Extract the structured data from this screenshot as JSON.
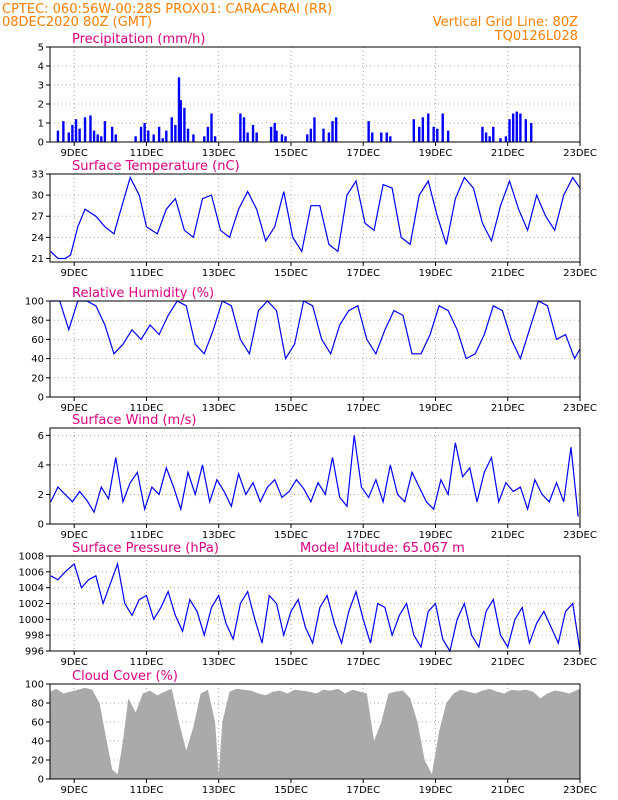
{
  "header": {
    "line1": "CPTEC:   060:56W-00:28S   PROX01: CARACARAI (RR)",
    "line2_left": "08DEC2020 80Z (GMT)",
    "line2_right": "Vertical Grid Line: 80Z",
    "line3_right": "TQ0126L028"
  },
  "x_ticks": [
    "9DEC",
    "11DEC",
    "13DEC",
    "15DEC",
    "17DEC",
    "19DEC",
    "21DEC",
    "23DEC"
  ],
  "colors": {
    "header": "#ff7f00",
    "title": "#e0007f",
    "series": "#0000ff",
    "cloud": "#aaaaaa"
  },
  "chart_data": [
    {
      "type": "bar",
      "title": "Precipitation (mm/h)",
      "ylim": [
        0,
        5
      ],
      "yticks": [
        0,
        1,
        2,
        3,
        4,
        5
      ],
      "x_range_days": [
        8.33,
        23.0
      ],
      "x": [
        8.55,
        8.7,
        8.85,
        8.95,
        9.05,
        9.15,
        9.3,
        9.45,
        9.55,
        9.65,
        9.75,
        9.85,
        10.05,
        10.15,
        10.7,
        10.85,
        10.95,
        11.05,
        11.2,
        11.35,
        11.45,
        11.55,
        11.7,
        11.8,
        11.9,
        11.95,
        12.05,
        12.15,
        12.3,
        12.6,
        12.7,
        12.8,
        12.9,
        13.6,
        13.7,
        13.8,
        13.95,
        14.05,
        14.45,
        14.55,
        14.6,
        14.75,
        14.85,
        15.45,
        15.55,
        15.65,
        15.9,
        16.05,
        16.15,
        16.25,
        17.15,
        17.25,
        17.5,
        17.65,
        17.75,
        18.4,
        18.55,
        18.65,
        18.8,
        18.95,
        19.05,
        19.2,
        19.35,
        20.3,
        20.4,
        20.5,
        20.6,
        20.8,
        20.95,
        21.05,
        21.15,
        21.25,
        21.35,
        21.5,
        21.65
      ],
      "values": [
        0.6,
        1.1,
        0.5,
        0.9,
        1.2,
        0.7,
        1.3,
        1.4,
        0.6,
        0.4,
        0.3,
        1.1,
        0.8,
        0.4,
        0.3,
        0.8,
        1.0,
        0.6,
        0.4,
        0.8,
        0.2,
        0.6,
        1.3,
        0.9,
        3.4,
        2.2,
        1.8,
        0.7,
        0.4,
        0.3,
        0.8,
        1.5,
        0.3,
        1.5,
        1.3,
        0.5,
        0.9,
        0.5,
        0.8,
        1.0,
        0.6,
        0.4,
        0.3,
        0.4,
        0.7,
        1.3,
        0.7,
        0.5,
        1.1,
        1.3,
        1.1,
        0.5,
        0.5,
        0.5,
        0.3,
        1.2,
        0.8,
        1.3,
        1.5,
        0.8,
        0.7,
        1.5,
        0.6,
        0.8,
        0.5,
        0.3,
        0.8,
        0.2,
        0.3,
        1.2,
        1.5,
        1.6,
        1.5,
        1.2,
        1.0
      ]
    },
    {
      "type": "line",
      "title": "Surface Temperature (nC)",
      "ylim": [
        20.5,
        33
      ],
      "yticks": [
        21,
        24,
        27,
        30,
        33
      ],
      "x_range_days": [
        8.33,
        23.0
      ],
      "x": [
        8.35,
        8.55,
        8.75,
        8.9,
        9.1,
        9.3,
        9.6,
        9.85,
        10.1,
        10.35,
        10.55,
        10.8,
        11.0,
        11.3,
        11.55,
        11.8,
        12.05,
        12.3,
        12.55,
        12.8,
        13.05,
        13.3,
        13.55,
        13.8,
        14.05,
        14.3,
        14.55,
        14.8,
        15.05,
        15.3,
        15.55,
        15.8,
        16.05,
        16.3,
        16.55,
        16.8,
        17.05,
        17.3,
        17.55,
        17.8,
        18.05,
        18.3,
        18.55,
        18.8,
        19.05,
        19.3,
        19.55,
        19.8,
        20.05,
        20.3,
        20.55,
        20.8,
        21.05,
        21.3,
        21.55,
        21.8,
        22.05,
        22.3,
        22.55,
        22.8,
        23.0
      ],
      "values": [
        22,
        21,
        21,
        21.5,
        25.5,
        28,
        27,
        25.5,
        24.5,
        29,
        32.5,
        30,
        25.5,
        24.5,
        28,
        29.5,
        25,
        24,
        29.5,
        30,
        25,
        24,
        28,
        30.5,
        28,
        23.5,
        25.5,
        30.5,
        24,
        22,
        28.5,
        28.5,
        23,
        22,
        30,
        32,
        26,
        25,
        31.5,
        31,
        24,
        23,
        30,
        32,
        27,
        23,
        29.5,
        32.5,
        31,
        26,
        23.5,
        28.5,
        32,
        28,
        25,
        30,
        27,
        25,
        30,
        32.5,
        31
      ]
    },
    {
      "type": "line",
      "title": "Relative Humidity (%)",
      "ylim": [
        0,
        100
      ],
      "yticks": [
        0,
        20,
        40,
        60,
        80,
        100
      ],
      "x_range_days": [
        8.33,
        23.0
      ],
      "x": [
        8.35,
        8.6,
        8.85,
        9.1,
        9.35,
        9.6,
        9.85,
        10.1,
        10.35,
        10.6,
        10.85,
        11.1,
        11.35,
        11.6,
        11.85,
        12.1,
        12.35,
        12.6,
        12.85,
        13.1,
        13.35,
        13.6,
        13.85,
        14.1,
        14.35,
        14.6,
        14.85,
        15.1,
        15.35,
        15.6,
        15.85,
        16.1,
        16.35,
        16.6,
        16.85,
        17.1,
        17.35,
        17.6,
        17.85,
        18.1,
        18.35,
        18.6,
        18.85,
        19.1,
        19.35,
        19.6,
        19.85,
        20.1,
        20.35,
        20.6,
        20.85,
        21.1,
        21.35,
        21.6,
        21.85,
        22.1,
        22.35,
        22.6,
        22.85,
        23.0
      ],
      "values": [
        100,
        100,
        70,
        100,
        100,
        95,
        75,
        45,
        55,
        70,
        60,
        75,
        65,
        85,
        100,
        95,
        55,
        45,
        70,
        100,
        95,
        60,
        45,
        90,
        100,
        90,
        40,
        55,
        100,
        95,
        60,
        45,
        75,
        90,
        95,
        60,
        45,
        70,
        90,
        85,
        45,
        45,
        65,
        95,
        90,
        70,
        40,
        45,
        65,
        95,
        90,
        60,
        40,
        70,
        100,
        95,
        60,
        65,
        40,
        50
      ]
    },
    {
      "type": "line",
      "title": "Surface Wind (m/s)",
      "ylim": [
        0,
        6.5
      ],
      "yticks": [
        0,
        2,
        4,
        6
      ],
      "x_range_days": [
        8.33,
        23.0
      ],
      "x": [
        8.35,
        8.55,
        8.75,
        8.95,
        9.15,
        9.35,
        9.55,
        9.75,
        9.95,
        10.15,
        10.35,
        10.55,
        10.75,
        10.95,
        11.15,
        11.35,
        11.55,
        11.75,
        11.95,
        12.15,
        12.35,
        12.55,
        12.75,
        12.95,
        13.15,
        13.35,
        13.55,
        13.75,
        13.95,
        14.15,
        14.35,
        14.55,
        14.75,
        14.95,
        15.15,
        15.35,
        15.55,
        15.75,
        15.95,
        16.15,
        16.35,
        16.55,
        16.75,
        16.95,
        17.15,
        17.35,
        17.55,
        17.75,
        17.95,
        18.15,
        18.35,
        18.55,
        18.75,
        18.95,
        19.15,
        19.35,
        19.55,
        19.75,
        19.95,
        20.15,
        20.35,
        20.55,
        20.75,
        20.95,
        21.15,
        21.35,
        21.55,
        21.75,
        21.95,
        22.15,
        22.35,
        22.55,
        22.75,
        22.95
      ],
      "values": [
        1.5,
        2.5,
        2.0,
        1.5,
        2.2,
        1.6,
        0.8,
        2.5,
        1.7,
        4.5,
        1.5,
        2.8,
        3.5,
        1.0,
        2.5,
        2.0,
        3.8,
        2.5,
        1.0,
        3.5,
        2.0,
        4.0,
        1.5,
        3.0,
        2.2,
        1.2,
        3.4,
        2.0,
        2.8,
        1.5,
        2.5,
        3.0,
        1.8,
        2.2,
        3.0,
        2.4,
        1.5,
        2.8,
        2.0,
        4.5,
        1.8,
        1.2,
        6.0,
        2.5,
        1.8,
        3.0,
        1.5,
        4.0,
        2.0,
        1.5,
        3.5,
        2.5,
        1.5,
        1.0,
        3.0,
        2.0,
        5.5,
        3.2,
        3.8,
        1.5,
        3.5,
        4.5,
        1.5,
        2.8,
        2.2,
        2.5,
        1.0,
        3.0,
        2.0,
        1.5,
        2.8,
        1.5,
        5.2,
        0.5
      ]
    },
    {
      "type": "line",
      "title": "Surface Pressure (hPa)",
      "annotation": "Model Altitude: 65.067 m",
      "ylim": [
        996,
        1008
      ],
      "yticks": [
        996,
        998,
        1000,
        1002,
        1004,
        1006,
        1008
      ],
      "x_range_days": [
        8.33,
        23.0
      ],
      "x": [
        8.35,
        8.55,
        8.75,
        9.0,
        9.2,
        9.4,
        9.6,
        9.8,
        10.0,
        10.2,
        10.4,
        10.6,
        10.8,
        11.0,
        11.2,
        11.4,
        11.6,
        11.8,
        12.0,
        12.2,
        12.4,
        12.6,
        12.8,
        13.0,
        13.2,
        13.4,
        13.6,
        13.8,
        14.0,
        14.2,
        14.4,
        14.6,
        14.8,
        15.0,
        15.2,
        15.4,
        15.6,
        15.8,
        16.0,
        16.2,
        16.4,
        16.6,
        16.8,
        17.0,
        17.2,
        17.4,
        17.6,
        17.8,
        18.0,
        18.2,
        18.4,
        18.6,
        18.8,
        19.0,
        19.2,
        19.4,
        19.6,
        19.8,
        20.0,
        20.2,
        20.4,
        20.6,
        20.8,
        21.0,
        21.2,
        21.4,
        21.6,
        21.8,
        22.0,
        22.2,
        22.4,
        22.6,
        22.8,
        23.0
      ],
      "values": [
        1005.5,
        1005,
        1006,
        1007,
        1004,
        1005,
        1005.5,
        1002,
        1004.5,
        1007,
        1002,
        1000.5,
        1002.5,
        1003,
        1000,
        1001.5,
        1003.5,
        1000.5,
        998.5,
        1002.5,
        1001,
        998,
        1001.5,
        1003,
        999.5,
        997.5,
        1002,
        1003.5,
        1000,
        997,
        1003,
        1002,
        998,
        1001,
        1002.5,
        999,
        997,
        1001.5,
        1003,
        999.5,
        997,
        1001,
        1003.5,
        1000,
        997,
        1002,
        1001.5,
        998,
        1000.5,
        1002,
        998,
        996.5,
        1001,
        1002,
        997.5,
        996,
        1000,
        1002,
        998,
        996.5,
        1001,
        1002.5,
        998,
        996.5,
        1000,
        1001.5,
        997,
        999.5,
        1001,
        999,
        997,
        1001,
        1002,
        996
      ]
    },
    {
      "type": "area",
      "title": "Cloud Cover (%)",
      "ylim": [
        0,
        100
      ],
      "yticks": [
        0,
        20,
        40,
        60,
        80,
        100
      ],
      "x_range_days": [
        8.33,
        23.0
      ],
      "x": [
        8.35,
        8.5,
        8.7,
        8.9,
        9.1,
        9.3,
        9.5,
        9.7,
        9.9,
        10.05,
        10.2,
        10.35,
        10.5,
        10.7,
        10.9,
        11.1,
        11.3,
        11.5,
        11.7,
        11.9,
        12.1,
        12.3,
        12.5,
        12.7,
        12.9,
        13.0,
        13.1,
        13.3,
        13.5,
        13.7,
        13.9,
        14.1,
        14.3,
        14.5,
        14.7,
        14.9,
        15.1,
        15.3,
        15.5,
        15.7,
        15.9,
        16.1,
        16.3,
        16.5,
        16.7,
        16.9,
        17.1,
        17.3,
        17.5,
        17.7,
        17.9,
        18.1,
        18.3,
        18.5,
        18.7,
        18.9,
        19.1,
        19.3,
        19.5,
        19.7,
        19.9,
        20.1,
        20.3,
        20.5,
        20.7,
        20.9,
        21.1,
        21.3,
        21.5,
        21.7,
        21.9,
        22.1,
        22.3,
        22.5,
        22.7,
        23.0
      ],
      "values": [
        92,
        95,
        90,
        92,
        94,
        96,
        94,
        80,
        40,
        10,
        5,
        40,
        85,
        70,
        90,
        93,
        88,
        92,
        95,
        60,
        30,
        55,
        90,
        94,
        60,
        5,
        60,
        92,
        95,
        94,
        93,
        90,
        88,
        92,
        93,
        90,
        94,
        93,
        92,
        90,
        94,
        93,
        95,
        90,
        94,
        92,
        90,
        40,
        60,
        90,
        92,
        93,
        85,
        60,
        20,
        5,
        50,
        80,
        90,
        94,
        92,
        90,
        93,
        95,
        92,
        90,
        94,
        93,
        94,
        92,
        85,
        90,
        93,
        92,
        90,
        95
      ]
    }
  ]
}
